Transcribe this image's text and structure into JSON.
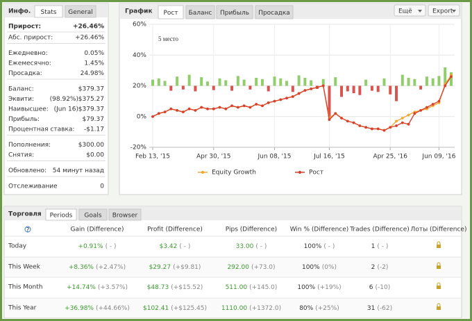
{
  "info": {
    "title": "Инфо.",
    "tabs": [
      "Stats",
      "General"
    ],
    "gain_label": "Прирост:",
    "gain": "+26.46%",
    "gain_color": "#3c9a2f",
    "groups": [
      [
        {
          "label": "Абс. прирост:",
          "value": "+26.46%",
          "color": "#3c9a2f"
        }
      ],
      [
        {
          "label": "Ежедневно:",
          "value": "0.05%"
        },
        {
          "label": "Ежемесячно:",
          "value": "1.45%"
        },
        {
          "label": "Просадка:",
          "value": "24.98%"
        }
      ],
      [
        {
          "label": "Баланс:",
          "value": "$379.37"
        },
        {
          "label": "Эквити:",
          "note": "(98.92%)",
          "value": "$375.27"
        },
        {
          "label": "Наивысшее:",
          "note": "(Jun 16)",
          "value": "$379.37"
        },
        {
          "label": "Прибыль:",
          "value": "$79.37",
          "color": "#3c9a2f"
        },
        {
          "label": "Процентная ставка:",
          "value": "-$1.17"
        }
      ],
      [
        {
          "label": "Пополнения:",
          "value": "$300.00"
        },
        {
          "label": "Снятия:",
          "value": "$0.00"
        }
      ],
      [
        {
          "label": "Обновлено:",
          "value": "54 минут назад"
        }
      ],
      [
        {
          "label": "Отслеживание",
          "value": "0"
        }
      ]
    ]
  },
  "chart": {
    "title": "График",
    "tabs": [
      "Рост",
      "Баланс",
      "Прибыль",
      "Просадка"
    ],
    "buttons": [
      "Ещё",
      "Export"
    ],
    "chart_data": {
      "type": "line",
      "annotation": "5 место",
      "categories": [
        "Feb 13, '15",
        null,
        null,
        null,
        null,
        null,
        null,
        null,
        null,
        null,
        "Apr 30, '15",
        null,
        null,
        null,
        null,
        null,
        null,
        null,
        null,
        null,
        "Jun 08, '15",
        null,
        null,
        null,
        null,
        null,
        null,
        null,
        null,
        "Jul 16, '15",
        null,
        null,
        null,
        null,
        null,
        null,
        null,
        null,
        null,
        "Apr 25, '16",
        null,
        null,
        null,
        null,
        null,
        null,
        null,
        "Jun 09, '16",
        null,
        null
      ],
      "series": [
        {
          "name": "Equity Growth",
          "color": "#f0a830",
          "values": [
            0,
            2,
            3,
            5,
            4,
            3,
            5,
            4,
            6,
            5,
            5,
            6,
            5,
            7,
            6,
            7,
            6,
            8,
            7,
            9,
            10,
            11,
            12,
            13,
            15,
            17,
            18,
            19,
            20,
            -1,
            2,
            -1,
            -3,
            -4,
            -6,
            -7,
            -8,
            -8,
            -9,
            -7,
            -3,
            -1,
            1,
            3,
            4,
            5,
            7,
            9,
            21,
            27
          ]
        },
        {
          "name": "Рост",
          "color": "#d9412c",
          "values": [
            0,
            2,
            3,
            5,
            4,
            3,
            5,
            4,
            6,
            5,
            5,
            6,
            5,
            7,
            6,
            7,
            6,
            8,
            7,
            9,
            10,
            11,
            12,
            13,
            15,
            17,
            18,
            19,
            20,
            -2,
            2,
            -1,
            -3,
            -4,
            -6,
            -7,
            -8,
            -8,
            -9,
            -7,
            -6,
            -4,
            -5,
            2,
            4,
            6,
            8,
            10,
            20,
            26
          ]
        }
      ],
      "bars": {
        "axis": "y2",
        "up_color": "#8fce6a",
        "down_color": "#d9534f",
        "values": [
          1.0,
          1.2,
          0.8,
          -0.8,
          1.5,
          -0.6,
          1.8,
          -0.9,
          1.4,
          0.7,
          -0.7,
          1.2,
          0.9,
          -0.8,
          1.6,
          1.0,
          -0.6,
          1.3,
          1.1,
          -0.9,
          1.5,
          1.2,
          0.8,
          -1.0,
          1.7,
          1.3,
          0.9,
          -0.5,
          1.1,
          -5.0,
          1.4,
          -1.8,
          -0.9,
          -1.2,
          -1.5,
          1.0,
          -0.8,
          -1.0,
          1.2,
          -1.4,
          -2.5,
          1.8,
          1.3,
          1.1,
          -0.6,
          1.5,
          1.2,
          1.6,
          3.0,
          2.2
        ]
      },
      "ylim": [
        -20,
        60
      ],
      "yticks": [
        {
          "value": -20,
          "label": "-20%"
        },
        {
          "value": 0,
          "label": "0%"
        },
        {
          "value": 20,
          "label": "20%"
        },
        {
          "value": 40,
          "label": "40%"
        },
        {
          "value": 60,
          "label": "60%"
        }
      ],
      "y2lim": [
        -10,
        10
      ],
      "grid": true
    }
  },
  "trading": {
    "title": "Торговля",
    "tabs": [
      "Periods",
      "Goals",
      "Browser"
    ],
    "columns": [
      {
        "header": "Gain (Difference)",
        "color": "#3c9a2f"
      },
      {
        "header": "Profit (Difference)",
        "color": "#3c9a2f"
      },
      {
        "header": "Pips (Difference)",
        "color": "#3c9a2f"
      },
      {
        "header": "Win % (Difference)",
        "color": "#333333"
      },
      {
        "header": "Trades (Difference)",
        "color": "#333333"
      },
      {
        "header": "Лоты (Difference)",
        "color": "#333333"
      }
    ],
    "rows": [
      {
        "period": "Today",
        "cells": [
          {
            "main": "+0.91%",
            "diff": "( - )"
          },
          {
            "main": "$3.42",
            "diff": "( - )"
          },
          {
            "main": "33.00",
            "diff": "( - )"
          },
          {
            "main": "100%",
            "diff": "( - )"
          },
          {
            "main": "1",
            "diff": "( - )"
          }
        ]
      },
      {
        "period": "This Week",
        "cells": [
          {
            "main": "+8.36%",
            "diff": "(+2.47%)"
          },
          {
            "main": "$29.27",
            "diff": "(+$9.81)"
          },
          {
            "main": "292.00",
            "diff": "(+73.0)"
          },
          {
            "main": "100%",
            "diff": "(0%)"
          },
          {
            "main": "2",
            "diff": "(-2)"
          }
        ]
      },
      {
        "period": "This Month",
        "cells": [
          {
            "main": "+14.74%",
            "diff": "(+3.57%)"
          },
          {
            "main": "$48.73",
            "diff": "(+$15.52)"
          },
          {
            "main": "511.00",
            "diff": "(+145.0)"
          },
          {
            "main": "100%",
            "diff": "(+19%)"
          },
          {
            "main": "6",
            "diff": "(-10)"
          }
        ]
      },
      {
        "period": "This Year",
        "cells": [
          {
            "main": "+36.98%",
            "diff": "(+44.66%)"
          },
          {
            "main": "$102.41",
            "diff": "(+$125.45)"
          },
          {
            "main": "1110.00",
            "diff": "(+1372.0)"
          },
          {
            "main": "80%",
            "diff": "(+25%)"
          },
          {
            "main": "31",
            "diff": "(-62)"
          }
        ]
      }
    ]
  }
}
